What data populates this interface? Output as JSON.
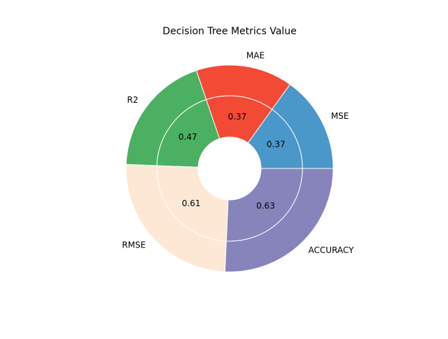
{
  "chart_data": {
    "type": "pie",
    "subtype": "nested-donut",
    "title": "Decision Tree Metrics Value",
    "categories": [
      "MSE",
      "MAE",
      "R2",
      "RMSE",
      "ACCURACY"
    ],
    "values": [
      0.37,
      0.37,
      0.47,
      0.61,
      0.63
    ],
    "value_labels": [
      "0.37",
      "0.37",
      "0.47",
      "0.61",
      "0.63"
    ],
    "colors": [
      "#4a97c9",
      "#f34a36",
      "#4bb062",
      "#fde8d6",
      "#8784bb"
    ],
    "start_angle_deg": 0,
    "direction": "counterclockwise"
  }
}
